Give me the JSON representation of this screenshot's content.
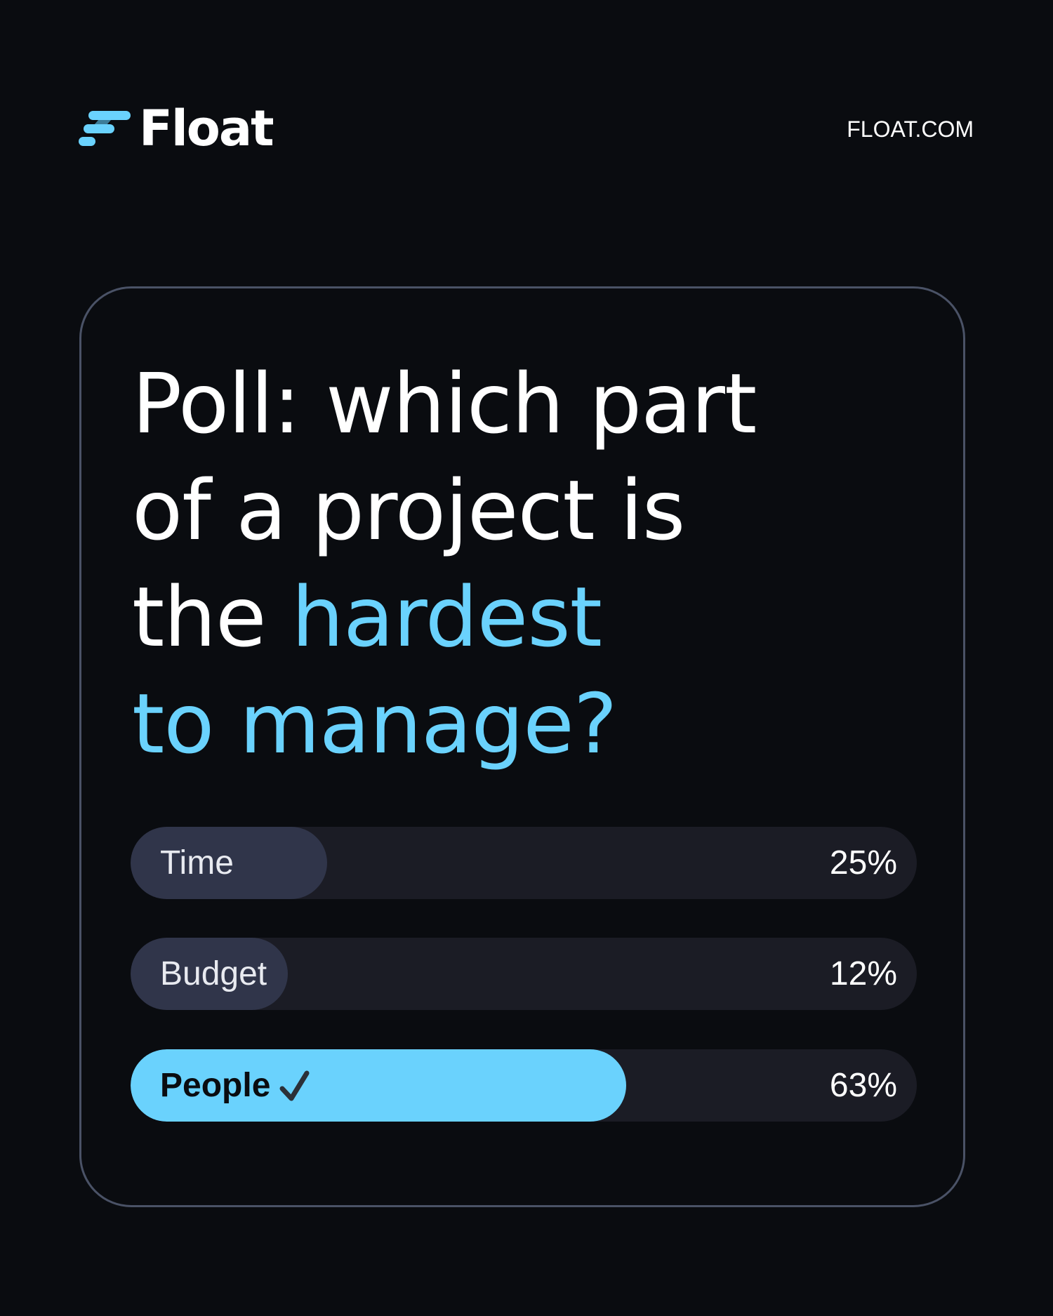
{
  "header": {
    "logo_text": "Float",
    "site": "FLOAT.COM"
  },
  "poll": {
    "title_plain": "Poll: which part of a project is the ",
    "title_line1": "Poll: which part",
    "title_line2": "of a project is",
    "title_line3_plain": "the ",
    "title_line3_highlight": "hardest",
    "title_line4_highlight": "to manage?",
    "options": [
      {
        "label": "Time",
        "percent_text": "25%",
        "percent": 25,
        "selected": false
      },
      {
        "label": "Budget",
        "percent_text": "12%",
        "percent": 12,
        "selected": false
      },
      {
        "label": "People",
        "percent_text": "63%",
        "percent": 63,
        "selected": true,
        "icon": "check-icon"
      }
    ]
  },
  "colors": {
    "background": "#0a0c10",
    "accent": "#6ad2fd",
    "track": "#1b1c25",
    "fill": "#30354a",
    "card_border": "#4a5266"
  }
}
